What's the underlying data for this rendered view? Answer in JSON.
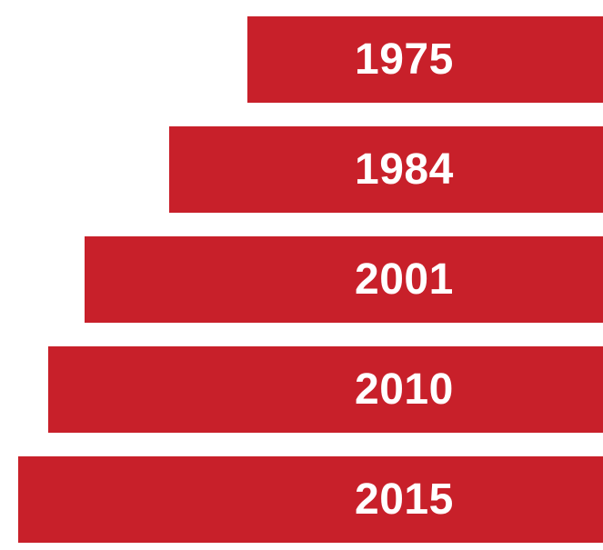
{
  "chart_data": {
    "type": "bar",
    "orientation": "horizontal",
    "categories": [
      "1975",
      "1984",
      "2001",
      "2010",
      "2015"
    ],
    "values": [
      0.59,
      0.72,
      0.86,
      0.92,
      0.97
    ],
    "xlim": [
      0,
      1
    ],
    "bar_color": "#c8202a",
    "label_color": "#ffffff",
    "axis_visible": false,
    "grid": false,
    "legend": "none",
    "alignment": "right"
  }
}
